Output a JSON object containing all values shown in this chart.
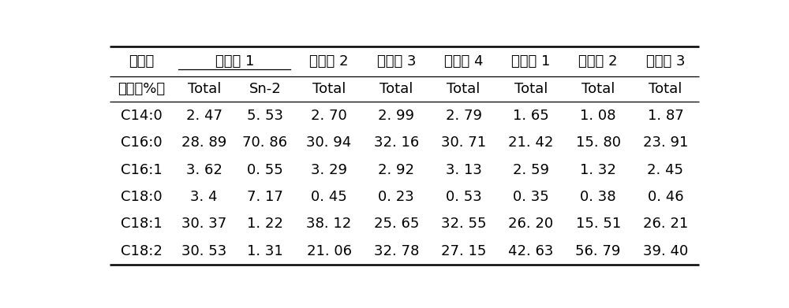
{
  "header_row1_left": "脂肪酸",
  "header_row1_span": "实施例 1",
  "header_row1_rest": [
    "实施例 2",
    "实施例 3",
    "实施例 4",
    "对比例 1",
    "对比例 2",
    "对比例 3"
  ],
  "header_row2": [
    "组成（%）",
    "Total",
    "Sn-2",
    "Total",
    "Total",
    "Total",
    "Total",
    "Total",
    "Total"
  ],
  "rows": [
    [
      "C14:0",
      "2. 47",
      "5. 53",
      "2. 70",
      "2. 99",
      "2. 79",
      "1. 65",
      "1. 08",
      "1. 87"
    ],
    [
      "C16:0",
      "28. 89",
      "70. 86",
      "30. 94",
      "32. 16",
      "30. 71",
      "21. 42",
      "15. 80",
      "23. 91"
    ],
    [
      "C16:1",
      "3. 62",
      "0. 55",
      "3. 29",
      "2. 92",
      "3. 13",
      "2. 59",
      "1. 32",
      "2. 45"
    ],
    [
      "C18:0",
      "3. 4",
      "7. 17",
      "0. 45",
      "0. 23",
      "0. 53",
      "0. 35",
      "0. 38",
      "0. 46"
    ],
    [
      "C18:1",
      "30. 37",
      "1. 22",
      "38. 12",
      "25. 65",
      "32. 55",
      "26. 20",
      "15. 51",
      "26. 21"
    ],
    [
      "C18:2",
      "30. 53",
      "1. 31",
      "21. 06",
      "32. 78",
      "27. 15",
      "42. 63",
      "56. 79",
      "39. 40"
    ]
  ],
  "background_color": "#ffffff",
  "border_color": "#000000",
  "text_color": "#000000",
  "font_size": 13,
  "line_color": "#555555"
}
